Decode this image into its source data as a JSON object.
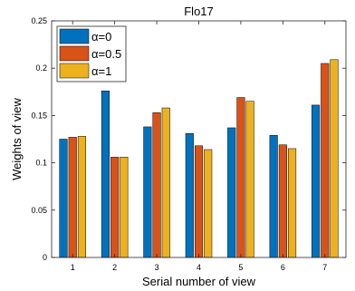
{
  "chart_data": {
    "type": "bar",
    "title": "Flo17",
    "xlabel": "Serial number of view",
    "ylabel": "Weights of view",
    "categories": [
      "1",
      "2",
      "3",
      "4",
      "5",
      "6",
      "7"
    ],
    "ylim": [
      0,
      0.25
    ],
    "yticks": [
      "0",
      "0.05",
      "0.1",
      "0.15",
      "0.2",
      "0.25"
    ],
    "legend_position": "top-left",
    "grid": false,
    "series": [
      {
        "name": "α=0",
        "color": "#0072BD",
        "values": [
          0.125,
          0.176,
          0.138,
          0.131,
          0.137,
          0.129,
          0.161
        ]
      },
      {
        "name": "α=0.5",
        "color": "#D95319",
        "values": [
          0.127,
          0.106,
          0.153,
          0.118,
          0.169,
          0.119,
          0.205
        ]
      },
      {
        "name": "α=1",
        "color": "#EDB120",
        "values": [
          0.128,
          0.106,
          0.158,
          0.114,
          0.165,
          0.115,
          0.209
        ]
      }
    ]
  }
}
